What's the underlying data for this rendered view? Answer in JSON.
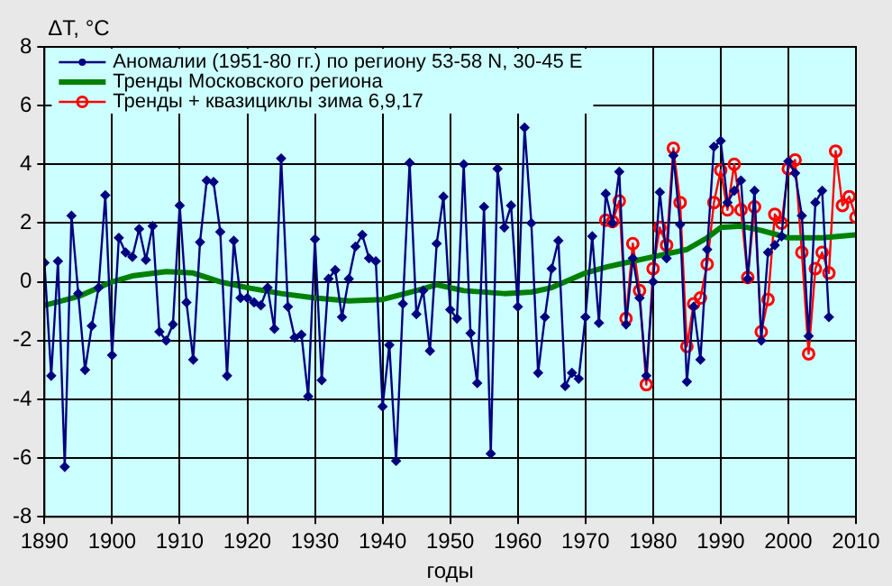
{
  "chart_data": {
    "type": "line",
    "ylabel": "ΔT, °C",
    "xlabel": "годы",
    "xlim": [
      1890,
      2010
    ],
    "xticks": [
      1890,
      1900,
      1910,
      1920,
      1930,
      1940,
      1950,
      1960,
      1970,
      1980,
      1990,
      2000,
      2010
    ],
    "ylim": [
      -8,
      8
    ],
    "yticks": [
      -8,
      -6,
      -4,
      -2,
      0,
      2,
      4,
      6,
      8
    ],
    "grid": true,
    "legend": "top left",
    "series": [
      {
        "name": "Аномалии (1951-80 гг.) по региону 53-58 N, 30-45 E",
        "color": "#000080",
        "marker": "diamond",
        "x": [
          1890,
          1891,
          1892,
          1893,
          1894,
          1895,
          1896,
          1897,
          1898,
          1899,
          1900,
          1901,
          1902,
          1903,
          1904,
          1905,
          1906,
          1907,
          1908,
          1909,
          1910,
          1911,
          1912,
          1913,
          1914,
          1915,
          1916,
          1917,
          1918,
          1919,
          1920,
          1921,
          1922,
          1923,
          1924,
          1925,
          1926,
          1927,
          1928,
          1929,
          1930,
          1931,
          1932,
          1933,
          1934,
          1935,
          1936,
          1937,
          1938,
          1939,
          1940,
          1941,
          1942,
          1943,
          1944,
          1945,
          1946,
          1947,
          1948,
          1949,
          1950,
          1951,
          1952,
          1953,
          1954,
          1955,
          1956,
          1957,
          1958,
          1959,
          1960,
          1961,
          1962,
          1963,
          1964,
          1965,
          1966,
          1967,
          1968,
          1969,
          1970,
          1971,
          1972,
          1973,
          1974,
          1975,
          1976,
          1977,
          1978,
          1979,
          1980,
          1981,
          1982,
          1983,
          1984,
          1985,
          1986,
          1987,
          1988,
          1989,
          1990,
          1991,
          1992,
          1993,
          1994,
          1995,
          1996,
          1997,
          1998,
          1999,
          2000,
          2001,
          2002,
          2003,
          2004,
          2005,
          2006
        ],
        "values": [
          0.65,
          -3.2,
          0.7,
          -6.3,
          2.25,
          -0.4,
          -3.0,
          -1.5,
          -0.2,
          2.95,
          -2.5,
          1.5,
          1.0,
          0.85,
          1.8,
          0.75,
          1.9,
          -1.7,
          -2.0,
          -1.45,
          2.6,
          -0.7,
          -2.65,
          1.35,
          3.45,
          3.4,
          1.7,
          -3.2,
          1.4,
          -0.55,
          -0.55,
          -0.7,
          -0.8,
          -0.2,
          -1.6,
          4.2,
          -0.85,
          -1.9,
          -1.8,
          -3.9,
          1.45,
          -3.35,
          0.1,
          0.4,
          -1.2,
          0.1,
          1.2,
          1.6,
          0.8,
          0.7,
          -4.25,
          -2.15,
          -6.1,
          -0.75,
          4.05,
          -1.1,
          -0.3,
          -2.35,
          1.3,
          2.9,
          -0.95,
          -1.25,
          4.0,
          -1.75,
          -3.45,
          2.55,
          -5.85,
          3.85,
          1.85,
          2.6,
          -0.85,
          5.25,
          2.0,
          -3.1,
          -1.2,
          0.45,
          1.4,
          -3.55,
          -3.1,
          -3.3,
          -1.2,
          1.55,
          -1.4,
          3.0,
          2.0,
          3.75,
          -1.45,
          0.8,
          -0.55,
          -3.2,
          0,
          3.05,
          0.8,
          4.3,
          1.95,
          -3.4,
          -0.85,
          -2.65,
          1.1,
          4.6,
          4.8,
          2.7,
          3.1,
          3.45,
          0.1,
          3.1,
          -2.0,
          1.0,
          1.25,
          1.55,
          4.1,
          3.7,
          2.25,
          -1.85,
          2.7,
          3.1,
          -1.2
        ]
      },
      {
        "name": "Тренды Московского региона",
        "color": "#008000",
        "marker": "none",
        "x": [
          1890,
          1895,
          1900,
          1903,
          1908,
          1912,
          1916,
          1920,
          1925,
          1930,
          1935,
          1940,
          1945,
          1948,
          1952,
          1958,
          1962,
          1965,
          1970,
          1973,
          1975,
          1980,
          1985,
          1988,
          1990,
          1993,
          1996,
          2000,
          2005,
          2010
        ],
        "values": [
          -0.8,
          -0.5,
          0.0,
          0.2,
          0.35,
          0.3,
          0.0,
          -0.2,
          -0.4,
          -0.55,
          -0.65,
          -0.6,
          -0.3,
          -0.1,
          -0.3,
          -0.4,
          -0.35,
          -0.2,
          0.3,
          0.5,
          0.6,
          0.85,
          1.1,
          1.5,
          1.85,
          1.9,
          1.75,
          1.5,
          1.5,
          1.6
        ]
      },
      {
        "name": "Тренды + квазициклы зима 6,9,17",
        "color": "#ff0000",
        "marker": "circle",
        "x": [
          1973,
          1974,
          1975,
          1976,
          1977,
          1978,
          1979,
          1980,
          1981,
          1982,
          1983,
          1984,
          1985,
          1986,
          1987,
          1988,
          1989,
          1990,
          1991,
          1992,
          1993,
          1994,
          1995,
          1996,
          1997,
          1998,
          1999,
          2000,
          2001,
          2002,
          2003,
          2004,
          2005,
          2006,
          2007,
          2008,
          2009,
          2010
        ],
        "values": [
          2.1,
          2.05,
          2.75,
          -1.25,
          1.3,
          -0.3,
          -3.5,
          0.45,
          1.85,
          1.25,
          4.55,
          2.7,
          -2.2,
          -0.75,
          -0.55,
          0.6,
          2.7,
          3.8,
          2.45,
          4.0,
          2.45,
          0.15,
          2.55,
          -1.7,
          -0.6,
          2.3,
          2.0,
          3.85,
          4.15,
          1.0,
          -2.45,
          0.45,
          1.0,
          0.3,
          4.45,
          2.6,
          2.9,
          2.2
        ]
      }
    ]
  }
}
